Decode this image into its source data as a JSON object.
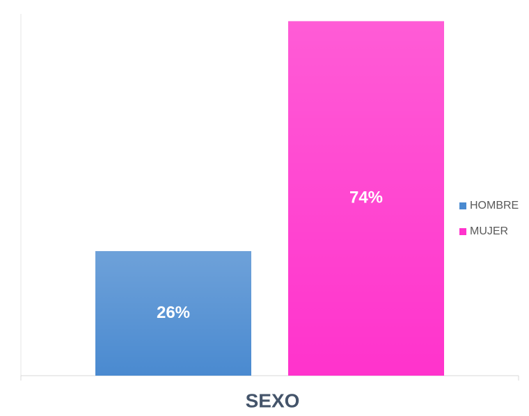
{
  "chart_data": {
    "type": "bar",
    "categories": [
      "SEXO"
    ],
    "series": [
      {
        "name": "HOMBRE",
        "color": "#4a8ad0",
        "values": [
          26
        ],
        "value_labels": [
          "26%"
        ]
      },
      {
        "name": "MUJER",
        "color": "#ff33cc",
        "values": [
          74
        ],
        "value_labels": [
          "74%"
        ]
      }
    ],
    "ylim": [
      0,
      74.5
    ],
    "legend": "right"
  }
}
